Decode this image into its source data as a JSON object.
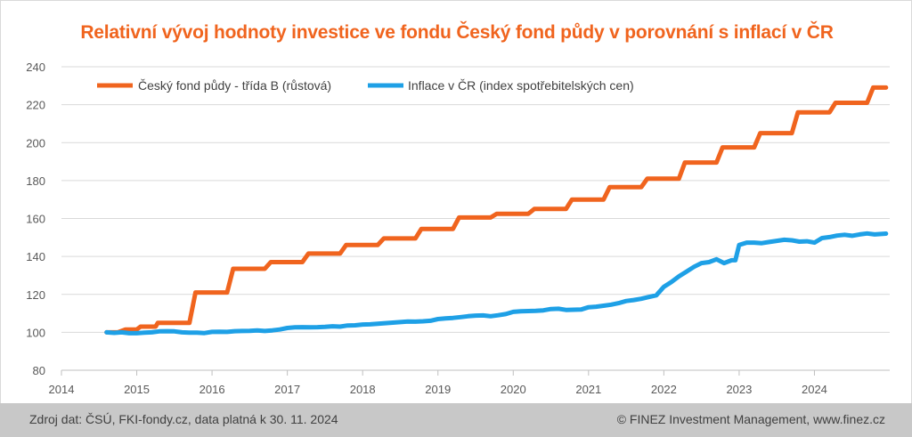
{
  "chart_data": {
    "type": "line",
    "title": "Relativní vývoj hodnoty investice ve fondu Český fond půdy v porovnání s inflací v ČR",
    "xlabel": "",
    "ylabel": "",
    "xlim": [
      2014,
      2025
    ],
    "ylim": [
      80,
      240
    ],
    "x_ticks": [
      "2014",
      "2015",
      "2016",
      "2017",
      "2018",
      "2019",
      "2020",
      "2021",
      "2022",
      "2023",
      "2024"
    ],
    "y_ticks": [
      "80",
      "100",
      "120",
      "140",
      "160",
      "180",
      "200",
      "220",
      "240"
    ],
    "grid": "horizontal",
    "legend_position": "top-left",
    "series": [
      {
        "name": "Český fond půdy - třída B (růstová)",
        "color": "#f0641e",
        "points": [
          [
            2014.6,
            100
          ],
          [
            2014.75,
            100
          ],
          [
            2014.85,
            101.5
          ],
          [
            2015.0,
            101.5
          ],
          [
            2015.05,
            103
          ],
          [
            2015.25,
            103
          ],
          [
            2015.28,
            105
          ],
          [
            2015.7,
            105
          ],
          [
            2015.78,
            121
          ],
          [
            2016.2,
            121
          ],
          [
            2016.28,
            133.5
          ],
          [
            2016.7,
            133.5
          ],
          [
            2016.78,
            137
          ],
          [
            2017.2,
            137
          ],
          [
            2017.28,
            141.5
          ],
          [
            2017.7,
            141.5
          ],
          [
            2017.78,
            146
          ],
          [
            2018.2,
            146
          ],
          [
            2018.28,
            149.5
          ],
          [
            2018.7,
            149.5
          ],
          [
            2018.78,
            154.5
          ],
          [
            2019.2,
            154.5
          ],
          [
            2019.28,
            160.5
          ],
          [
            2019.7,
            160.5
          ],
          [
            2019.78,
            162.5
          ],
          [
            2020.2,
            162.5
          ],
          [
            2020.28,
            165
          ],
          [
            2020.7,
            165
          ],
          [
            2020.78,
            170
          ],
          [
            2021.2,
            170
          ],
          [
            2021.28,
            176.5
          ],
          [
            2021.7,
            176.5
          ],
          [
            2021.78,
            181
          ],
          [
            2022.2,
            181
          ],
          [
            2022.28,
            189.5
          ],
          [
            2022.7,
            189.5
          ],
          [
            2022.78,
            197.5
          ],
          [
            2023.2,
            197.5
          ],
          [
            2023.28,
            205
          ],
          [
            2023.7,
            205
          ],
          [
            2023.78,
            216
          ],
          [
            2024.2,
            216
          ],
          [
            2024.28,
            221
          ],
          [
            2024.7,
            221
          ],
          [
            2024.78,
            229
          ],
          [
            2024.95,
            229
          ]
        ]
      },
      {
        "name": "Inflace v ČR (index spotřebitelských cen)",
        "color": "#1ea0e6",
        "points": [
          [
            2014.6,
            100
          ],
          [
            2014.7,
            99.7
          ],
          [
            2014.8,
            100
          ],
          [
            2014.9,
            99.5
          ],
          [
            2015.0,
            99.5
          ],
          [
            2015.1,
            99.8
          ],
          [
            2015.2,
            100
          ],
          [
            2015.3,
            100.5
          ],
          [
            2015.4,
            100.6
          ],
          [
            2015.5,
            100.5
          ],
          [
            2015.6,
            100
          ],
          [
            2015.7,
            99.8
          ],
          [
            2015.8,
            99.8
          ],
          [
            2015.9,
            99.6
          ],
          [
            2016.0,
            100.2
          ],
          [
            2016.1,
            100.3
          ],
          [
            2016.2,
            100.2
          ],
          [
            2016.3,
            100.6
          ],
          [
            2016.4,
            100.7
          ],
          [
            2016.5,
            100.8
          ],
          [
            2016.6,
            101
          ],
          [
            2016.7,
            100.7
          ],
          [
            2016.8,
            101
          ],
          [
            2016.9,
            101.5
          ],
          [
            2017.0,
            102.3
          ],
          [
            2017.1,
            102.6
          ],
          [
            2017.2,
            102.7
          ],
          [
            2017.3,
            102.6
          ],
          [
            2017.4,
            102.7
          ],
          [
            2017.5,
            102.9
          ],
          [
            2017.6,
            103.2
          ],
          [
            2017.7,
            103
          ],
          [
            2017.8,
            103.6
          ],
          [
            2017.9,
            103.7
          ],
          [
            2018.0,
            104.1
          ],
          [
            2018.1,
            104.2
          ],
          [
            2018.2,
            104.5
          ],
          [
            2018.3,
            104.8
          ],
          [
            2018.4,
            105.1
          ],
          [
            2018.5,
            105.4
          ],
          [
            2018.6,
            105.7
          ],
          [
            2018.7,
            105.6
          ],
          [
            2018.8,
            105.8
          ],
          [
            2018.9,
            106.1
          ],
          [
            2019.0,
            107
          ],
          [
            2019.1,
            107.3
          ],
          [
            2019.2,
            107.6
          ],
          [
            2019.3,
            108
          ],
          [
            2019.4,
            108.5
          ],
          [
            2019.5,
            108.8
          ],
          [
            2019.6,
            108.9
          ],
          [
            2019.7,
            108.5
          ],
          [
            2019.8,
            109
          ],
          [
            2019.9,
            109.6
          ],
          [
            2020.0,
            110.8
          ],
          [
            2020.1,
            111.1
          ],
          [
            2020.2,
            111.2
          ],
          [
            2020.3,
            111.3
          ],
          [
            2020.4,
            111.6
          ],
          [
            2020.5,
            112.3
          ],
          [
            2020.6,
            112.4
          ],
          [
            2020.7,
            111.8
          ],
          [
            2020.8,
            111.9
          ],
          [
            2020.9,
            112
          ],
          [
            2021.0,
            113.2
          ],
          [
            2021.1,
            113.5
          ],
          [
            2021.2,
            114
          ],
          [
            2021.3,
            114.6
          ],
          [
            2021.4,
            115.4
          ],
          [
            2021.5,
            116.5
          ],
          [
            2021.6,
            117
          ],
          [
            2021.7,
            117.7
          ],
          [
            2021.8,
            118.6
          ],
          [
            2021.9,
            119.5
          ],
          [
            2022.0,
            124
          ],
          [
            2022.1,
            126.5
          ],
          [
            2022.2,
            129.5
          ],
          [
            2022.3,
            132
          ],
          [
            2022.4,
            134.5
          ],
          [
            2022.5,
            136.5
          ],
          [
            2022.6,
            137
          ],
          [
            2022.7,
            138.5
          ],
          [
            2022.8,
            136.5
          ],
          [
            2022.9,
            138
          ],
          [
            2022.95,
            138
          ],
          [
            2023.0,
            146
          ],
          [
            2023.1,
            147.3
          ],
          [
            2023.2,
            147.3
          ],
          [
            2023.3,
            147
          ],
          [
            2023.4,
            147.6
          ],
          [
            2023.5,
            148.2
          ],
          [
            2023.6,
            148.8
          ],
          [
            2023.7,
            148.5
          ],
          [
            2023.8,
            147.8
          ],
          [
            2023.9,
            148
          ],
          [
            2024.0,
            147.3
          ],
          [
            2024.1,
            149.7
          ],
          [
            2024.2,
            150.2
          ],
          [
            2024.3,
            151
          ],
          [
            2024.4,
            151.4
          ],
          [
            2024.5,
            150.9
          ],
          [
            2024.6,
            151.6
          ],
          [
            2024.7,
            152.1
          ],
          [
            2024.8,
            151.6
          ],
          [
            2024.95,
            152
          ]
        ]
      }
    ]
  },
  "footer": {
    "source": "Zdroj dat: ČSÚ, FKI-fondy.cz, data platná k 30. 11. 2024",
    "copyright": "© FINEZ Investment Management, www.finez.cz"
  }
}
